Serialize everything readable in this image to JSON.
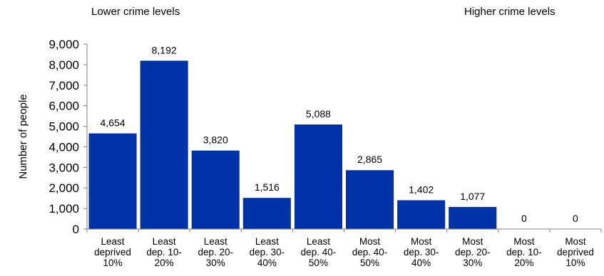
{
  "annotations": {
    "left_top": "Lower crime levels",
    "right_top": "Higher crime levels"
  },
  "chart_data": {
    "type": "bar",
    "title": "",
    "xlabel": "",
    "ylabel": "Number of people",
    "ylim": [
      0,
      9000
    ],
    "yticks": [
      0,
      1000,
      2000,
      3000,
      4000,
      5000,
      6000,
      7000,
      8000,
      9000
    ],
    "ytick_labels": [
      "0",
      "1,000",
      "2,000",
      "3,000",
      "4,000",
      "5,000",
      "6,000",
      "7,000",
      "8,000",
      "9,000"
    ],
    "grid": false,
    "legend": "none",
    "bar_color": "#0033a8",
    "categories": [
      [
        "Least",
        "deprived",
        "10%"
      ],
      [
        "Least",
        "dep. 10-",
        "20%"
      ],
      [
        "Least",
        "dep. 20-",
        "30%"
      ],
      [
        "Least",
        "dep. 30-",
        "40%"
      ],
      [
        "Least",
        "dep. 40-",
        "50%"
      ],
      [
        "Most",
        "dep. 40-",
        "50%"
      ],
      [
        "Most",
        "dep. 30-",
        "40%"
      ],
      [
        "Most",
        "dep. 20-",
        "30%"
      ],
      [
        "Most",
        "dep. 10-",
        "20%"
      ],
      [
        "Most",
        "deprived",
        "10%"
      ]
    ],
    "values": [
      4654,
      8192,
      3820,
      1516,
      5088,
      2865,
      1402,
      1077,
      0,
      0
    ],
    "value_labels": [
      "4,654",
      "8,192",
      "3,820",
      "1,516",
      "5,088",
      "2,865",
      "1,402",
      "1,077",
      "0",
      "0"
    ]
  }
}
